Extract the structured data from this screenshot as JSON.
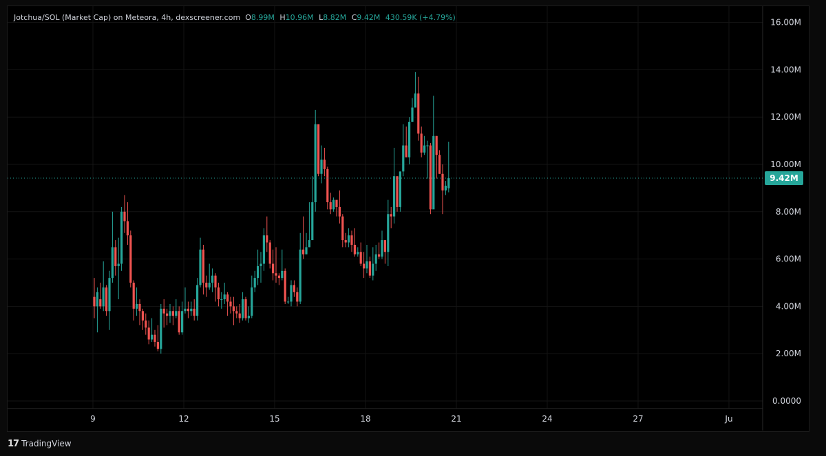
{
  "legend": {
    "title": "Jotchua/SOL (Market Cap) on Meteora, 4h, dexscreener.com",
    "o_label": "O",
    "o_value": "8.99M",
    "h_label": "H",
    "h_value": "10.96M",
    "l_label": "L",
    "l_value": "8.82M",
    "c_label": "C",
    "c_value": "9.42M",
    "change": "430.59K (+4.79%)"
  },
  "current_price_label": "9.42M",
  "brand": {
    "logo": "17",
    "name": "TradingView"
  },
  "colors": {
    "up": "#26a69a",
    "down": "#ef5350",
    "grid": "#141414",
    "text": "#d1d4dc"
  },
  "chart_data": {
    "type": "candlestick",
    "title": "Jotchua/SOL (Market Cap) on Meteora, 4h, dexscreener.com",
    "x_ticks": [
      "9",
      "12",
      "15",
      "18",
      "21",
      "24",
      "27",
      "Ju"
    ],
    "y_ticks": [
      "0.0000",
      "2.00M",
      "4.00M",
      "6.00M",
      "8.00M",
      "10.00M",
      "12.00M",
      "14.00M",
      "16.00M"
    ],
    "ylim": [
      0,
      16.6
    ],
    "y_unit": "M",
    "last_close": 9.42,
    "grid": true,
    "candles": [
      [
        4.4,
        4.0,
        5.2,
        3.5
      ],
      [
        4.0,
        4.6,
        4.8,
        2.9
      ],
      [
        4.3,
        4.0,
        5.0,
        3.9
      ],
      [
        4.0,
        4.8,
        5.9,
        3.8
      ],
      [
        4.8,
        3.8,
        4.9,
        3.6
      ],
      [
        3.8,
        5.2,
        5.5,
        3.0
      ],
      [
        5.2,
        6.5,
        8.0,
        5.0
      ],
      [
        6.5,
        5.7,
        6.8,
        5.3
      ],
      [
        5.7,
        5.8,
        6.9,
        4.3
      ],
      [
        5.8,
        8.0,
        8.2,
        5.5
      ],
      [
        8.0,
        7.6,
        8.7,
        7.1
      ],
      [
        7.6,
        7.0,
        8.4,
        6.6
      ],
      [
        7.0,
        5.0,
        7.2,
        4.8
      ],
      [
        5.0,
        3.9,
        5.1,
        3.4
      ],
      [
        3.9,
        4.1,
        4.8,
        3.6
      ],
      [
        4.1,
        3.8,
        4.3,
        3.2
      ],
      [
        3.8,
        3.4,
        3.9,
        3.0
      ],
      [
        3.4,
        3.1,
        3.7,
        2.8
      ],
      [
        3.1,
        2.6,
        3.4,
        2.4
      ],
      [
        2.6,
        2.8,
        3.5,
        2.5
      ],
      [
        2.8,
        2.5,
        3.0,
        2.3
      ],
      [
        2.5,
        2.2,
        3.2,
        2.1
      ],
      [
        2.2,
        3.9,
        4.1,
        2.0
      ],
      [
        3.9,
        3.7,
        4.3,
        3.1
      ],
      [
        3.7,
        3.6,
        3.9,
        3.2
      ],
      [
        3.6,
        3.8,
        4.1,
        3.3
      ],
      [
        3.8,
        3.6,
        4.0,
        3.2
      ],
      [
        3.6,
        3.8,
        4.3,
        3.5
      ],
      [
        3.8,
        2.9,
        4.0,
        2.8
      ],
      [
        2.9,
        3.8,
        4.2,
        2.8
      ],
      [
        3.8,
        3.9,
        4.8,
        3.7
      ],
      [
        3.9,
        3.8,
        4.2,
        3.5
      ],
      [
        3.8,
        3.9,
        4.2,
        3.6
      ],
      [
        3.9,
        3.6,
        4.3,
        3.4
      ],
      [
        3.6,
        4.9,
        5.2,
        3.4
      ],
      [
        4.9,
        6.4,
        6.9,
        4.8
      ],
      [
        6.4,
        5.0,
        6.6,
        4.5
      ],
      [
        5.0,
        4.8,
        5.3,
        4.4
      ],
      [
        4.8,
        5.0,
        5.8,
        4.7
      ],
      [
        5.0,
        5.3,
        5.6,
        4.6
      ],
      [
        5.3,
        4.8,
        5.4,
        4.2
      ],
      [
        4.8,
        4.3,
        5.0,
        4.0
      ],
      [
        4.3,
        4.3,
        4.6,
        3.9
      ],
      [
        4.3,
        4.5,
        5.0,
        4.1
      ],
      [
        4.5,
        4.2,
        4.6,
        3.6
      ],
      [
        4.2,
        4.0,
        4.4,
        3.7
      ],
      [
        4.0,
        3.8,
        4.4,
        3.2
      ],
      [
        3.8,
        3.7,
        4.0,
        3.5
      ],
      [
        3.7,
        3.5,
        4.1,
        3.3
      ],
      [
        3.5,
        4.3,
        4.6,
        3.4
      ],
      [
        4.3,
        3.5,
        4.4,
        3.4
      ],
      [
        3.5,
        3.6,
        4.0,
        3.3
      ],
      [
        3.6,
        4.8,
        5.3,
        3.5
      ],
      [
        4.8,
        5.2,
        5.5,
        4.6
      ],
      [
        5.2,
        5.7,
        6.4,
        4.9
      ],
      [
        5.7,
        5.8,
        6.3,
        5.0
      ],
      [
        5.8,
        7.0,
        7.3,
        5.5
      ],
      [
        7.0,
        6.7,
        7.8,
        6.3
      ],
      [
        6.7,
        5.8,
        6.8,
        5.6
      ],
      [
        5.8,
        5.4,
        6.4,
        5.1
      ],
      [
        5.4,
        5.3,
        6.5,
        5.0
      ],
      [
        5.3,
        5.2,
        5.4,
        4.9
      ],
      [
        5.2,
        5.5,
        6.4,
        5.1
      ],
      [
        5.5,
        4.2,
        5.6,
        4.1
      ],
      [
        4.2,
        4.2,
        4.4,
        4.1
      ],
      [
        4.2,
        4.9,
        5.1,
        4.0
      ],
      [
        4.9,
        4.6,
        5.1,
        4.4
      ],
      [
        4.6,
        4.2,
        4.8,
        4.0
      ],
      [
        4.2,
        6.4,
        7.1,
        4.1
      ],
      [
        6.4,
        6.2,
        7.8,
        6.0
      ],
      [
        6.2,
        6.5,
        7.1,
        6.2
      ],
      [
        6.5,
        6.8,
        8.4,
        6.5
      ],
      [
        6.8,
        8.4,
        9.5,
        7.1
      ],
      [
        8.4,
        11.7,
        12.3,
        8.0
      ],
      [
        11.7,
        9.6,
        11.7,
        9.5
      ],
      [
        9.6,
        10.2,
        10.8,
        9.2
      ],
      [
        10.2,
        9.8,
        10.7,
        9.5
      ],
      [
        9.8,
        8.4,
        9.9,
        8.1
      ],
      [
        8.4,
        8.1,
        8.8,
        7.9
      ],
      [
        8.1,
        8.5,
        8.6,
        8.0
      ],
      [
        8.5,
        8.2,
        8.4,
        7.8
      ],
      [
        8.2,
        7.8,
        8.9,
        7.5
      ],
      [
        7.8,
        6.8,
        7.9,
        6.5
      ],
      [
        6.8,
        6.7,
        7.1,
        6.5
      ],
      [
        6.7,
        7.0,
        7.3,
        6.5
      ],
      [
        7.0,
        6.6,
        7.2,
        6.3
      ],
      [
        6.6,
        6.2,
        7.3,
        6.1
      ],
      [
        6.2,
        6.3,
        6.5,
        6.1
      ],
      [
        6.3,
        5.8,
        6.7,
        5.7
      ],
      [
        5.8,
        5.6,
        6.3,
        5.2
      ],
      [
        5.6,
        5.9,
        6.6,
        5.4
      ],
      [
        5.9,
        5.3,
        6.1,
        5.2
      ],
      [
        5.3,
        5.8,
        6.5,
        5.1
      ],
      [
        5.8,
        6.2,
        6.6,
        5.5
      ],
      [
        6.2,
        6.1,
        6.7,
        6.0
      ],
      [
        6.1,
        6.8,
        7.2,
        6.0
      ],
      [
        6.8,
        6.3,
        6.5,
        5.8
      ],
      [
        6.3,
        7.9,
        8.5,
        5.7
      ],
      [
        7.9,
        7.8,
        8.2,
        7.3
      ],
      [
        7.8,
        9.5,
        10.7,
        7.5
      ],
      [
        9.5,
        8.2,
        9.5,
        8.0
      ],
      [
        8.2,
        9.7,
        9.7,
        8.0
      ],
      [
        9.7,
        10.8,
        11.7,
        9.5
      ],
      [
        10.8,
        10.3,
        11.6,
        10.3
      ],
      [
        10.3,
        11.8,
        12.0,
        10.0
      ],
      [
        11.8,
        12.4,
        12.8,
        11.9
      ],
      [
        12.4,
        13.0,
        13.9,
        12.6
      ],
      [
        13.0,
        11.3,
        13.7,
        11.0
      ],
      [
        11.3,
        10.5,
        11.6,
        10.3
      ],
      [
        10.5,
        10.8,
        11.2,
        10.4
      ],
      [
        10.8,
        10.8,
        11.0,
        9.4
      ],
      [
        10.8,
        8.1,
        10.9,
        7.9
      ],
      [
        8.1,
        11.2,
        12.9,
        8.3
      ],
      [
        11.2,
        10.4,
        11.2,
        9.4
      ],
      [
        10.4,
        9.6,
        10.6,
        9.6
      ],
      [
        9.6,
        8.9,
        10.0,
        7.9
      ],
      [
        8.9,
        9.1,
        9.3,
        8.7
      ],
      [
        8.99,
        9.42,
        10.96,
        8.82
      ]
    ]
  }
}
